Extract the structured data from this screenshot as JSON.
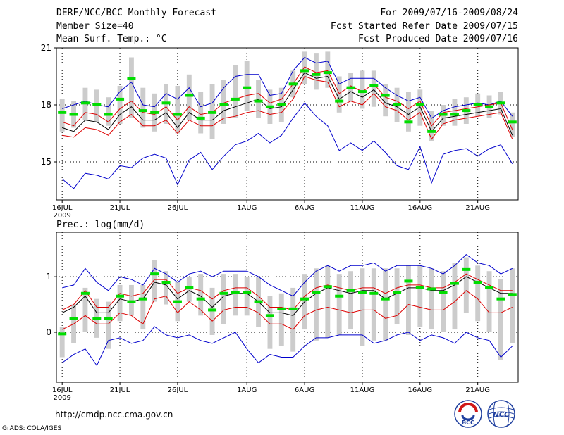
{
  "header": {
    "title": "DERF/NCC/BCC Monthly Forecast",
    "member_size": "Member Size=40",
    "variable": "Mean Surf. Temp.: °C",
    "period": "For 2009/07/16-2009/08/24",
    "started": "Fcst Started Refer Date 2009/07/15",
    "produced": "Fcst Produced Date 2009/07/16"
  },
  "footer": {
    "url": "http://cmdp.ncc.cma.gov.cn",
    "grads": "GrADS: COLA/IGES",
    "logo_left_text": "BCC",
    "logo_right_text": "NCC"
  },
  "colors": {
    "box": "#cccccc",
    "median": "#00dd00",
    "mean": "#000000",
    "spread": "#dd0000",
    "extreme": "#0000cc",
    "grid": "#000000"
  },
  "chart_data": [
    {
      "type": "line",
      "title": "Mean Surf. Temp.: °C",
      "x_tick_labels": [
        "16JUL",
        "21JUL",
        "26JUL",
        "1AUG",
        "6AUG",
        "11AUG",
        "16AUG",
        "21AUG"
      ],
      "x_tick_days": [
        0,
        5,
        10,
        16,
        21,
        26,
        31,
        36
      ],
      "year_label": "2009",
      "xlim": [
        0,
        40
      ],
      "ylim": [
        13.0,
        21.0
      ],
      "y_ticks": [
        15,
        18,
        21
      ],
      "series": [
        {
          "name": "max",
          "values": [
            14.1,
            13.6,
            14.4,
            14.3,
            14.1,
            14.8,
            14.7,
            15.2,
            15.4,
            15.2,
            13.8,
            15.1,
            15.5,
            14.6,
            15.3,
            15.9,
            16.1,
            16.5,
            16.0,
            16.4,
            17.3,
            18.1,
            17.4,
            16.9,
            15.6,
            16.0,
            15.6,
            16.1,
            15.5,
            14.8,
            14.6,
            15.8,
            13.9,
            15.4,
            15.6,
            15.7,
            15.3,
            15.7,
            15.9,
            14.9
          ]
        },
        {
          "name": "mean_minus",
          "values": [
            16.4,
            16.3,
            16.8,
            16.7,
            16.4,
            17.1,
            17.5,
            16.9,
            16.9,
            17.2,
            16.5,
            17.2,
            16.9,
            16.9,
            17.3,
            17.4,
            17.6,
            17.7,
            17.5,
            17.6,
            18.3,
            19.5,
            19.3,
            19.2,
            17.9,
            18.2,
            18.0,
            18.6,
            17.9,
            17.7,
            17.2,
            17.6,
            16.2,
            17.0,
            17.2,
            17.3,
            17.4,
            17.5,
            17.6,
            16.2
          ]
        },
        {
          "name": "mean",
          "values": [
            16.8,
            16.6,
            17.2,
            17.1,
            16.7,
            17.5,
            17.9,
            17.2,
            17.2,
            17.6,
            16.8,
            17.6,
            17.2,
            17.2,
            17.7,
            17.9,
            18.1,
            18.3,
            17.8,
            17.9,
            18.8,
            19.7,
            19.4,
            19.5,
            18.3,
            18.7,
            18.4,
            18.8,
            18.1,
            17.9,
            17.5,
            17.9,
            16.6,
            17.3,
            17.4,
            17.5,
            17.6,
            17.7,
            17.8,
            16.4
          ]
        },
        {
          "name": "mean_plus",
          "values": [
            17.1,
            16.9,
            17.6,
            17.5,
            17.1,
            17.8,
            18.2,
            17.6,
            17.5,
            17.9,
            17.2,
            17.9,
            17.5,
            17.6,
            18.1,
            18.3,
            18.5,
            18.6,
            18.1,
            18.3,
            19.1,
            20.0,
            19.7,
            19.8,
            18.6,
            19.0,
            18.7,
            19.1,
            18.4,
            18.2,
            17.8,
            18.2,
            16.9,
            17.6,
            17.7,
            17.8,
            17.9,
            18.0,
            18.1,
            16.7
          ]
        },
        {
          "name": "min",
          "values": [
            17.8,
            18.0,
            18.2,
            18.0,
            17.9,
            18.7,
            19.2,
            18.0,
            17.9,
            18.6,
            18.3,
            18.9,
            17.9,
            18.1,
            18.9,
            19.5,
            19.6,
            19.6,
            18.5,
            18.6,
            19.8,
            20.5,
            20.2,
            20.3,
            19.1,
            19.4,
            19.4,
            19.4,
            18.9,
            18.5,
            18.2,
            18.4,
            17.3,
            17.7,
            17.9,
            18.0,
            18.1,
            18.0,
            18.2,
            17.4
          ]
        },
        {
          "name": "median",
          "values": [
            17.6,
            17.5,
            18.1,
            18.0,
            17.5,
            18.3,
            19.4,
            17.7,
            17.6,
            18.1,
            17.5,
            18.5,
            17.3,
            17.6,
            18.0,
            18.3,
            18.9,
            18.2,
            17.9,
            18.0,
            19.1,
            19.8,
            19.6,
            19.7,
            18.2,
            18.9,
            18.7,
            19.0,
            18.5,
            18.0,
            17.1,
            18.0,
            16.6,
            17.5,
            17.5,
            17.7,
            18.0,
            17.9,
            18.1,
            17.1
          ]
        },
        {
          "name": "box_low",
          "values": [
            16.6,
            16.8,
            17.2,
            17.1,
            16.9,
            17.0,
            17.3,
            16.8,
            16.6,
            17.0,
            16.5,
            17.2,
            16.5,
            16.2,
            17.0,
            17.3,
            17.7,
            17.3,
            17.0,
            17.1,
            18.4,
            19.1,
            18.8,
            18.9,
            17.6,
            18.2,
            17.8,
            17.9,
            17.4,
            17.1,
            16.6,
            16.9,
            16.1,
            16.9,
            16.9,
            17.0,
            17.4,
            17.3,
            17.5,
            16.3
          ]
        },
        {
          "name": "box_high",
          "values": [
            18.3,
            18.2,
            18.9,
            18.8,
            18.4,
            19.0,
            20.5,
            18.9,
            18.6,
            19.1,
            19.0,
            19.6,
            18.7,
            19.1,
            19.3,
            20.1,
            20.3,
            19.3,
            18.8,
            18.9,
            19.8,
            20.8,
            20.7,
            20.8,
            19.5,
            19.7,
            19.8,
            19.8,
            19.1,
            18.9,
            18.7,
            18.8,
            17.7,
            18.0,
            18.3,
            18.4,
            18.6,
            18.5,
            18.7,
            17.6
          ]
        }
      ]
    },
    {
      "type": "line",
      "title": "Prec.: log(mm/d)",
      "x_tick_labels": [
        "16JUL",
        "21JUL",
        "26JUL",
        "1AUG",
        "6AUG",
        "11AUG",
        "16AUG",
        "21AUG"
      ],
      "x_tick_days": [
        0,
        5,
        10,
        16,
        21,
        26,
        31,
        36
      ],
      "year_label": "2009",
      "xlim": [
        0,
        40
      ],
      "ylim": [
        -0.9,
        1.8
      ],
      "y_ticks": [
        0,
        1
      ],
      "series": [
        {
          "name": "max",
          "values": [
            0.8,
            0.85,
            1.15,
            0.9,
            0.75,
            1.0,
            0.95,
            0.85,
            1.15,
            1.05,
            0.9,
            1.05,
            1.1,
            1.0,
            1.1,
            1.1,
            1.1,
            1.0,
            0.85,
            0.75,
            0.65,
            0.9,
            1.1,
            1.2,
            1.1,
            1.2,
            1.2,
            1.25,
            1.1,
            1.2,
            1.2,
            1.2,
            1.15,
            1.05,
            1.2,
            1.4,
            1.25,
            1.2,
            1.05,
            1.15
          ]
        },
        {
          "name": "mean_plus",
          "values": [
            0.4,
            0.5,
            0.75,
            0.45,
            0.45,
            0.7,
            0.65,
            0.7,
            0.95,
            0.95,
            0.7,
            0.8,
            0.75,
            0.6,
            0.75,
            0.8,
            0.8,
            0.65,
            0.45,
            0.45,
            0.4,
            0.65,
            0.8,
            0.85,
            0.8,
            0.75,
            0.8,
            0.8,
            0.7,
            0.8,
            0.85,
            0.85,
            0.8,
            0.8,
            0.9,
            1.05,
            0.95,
            0.85,
            0.75,
            0.75
          ]
        },
        {
          "name": "mean",
          "values": [
            0.35,
            0.45,
            0.65,
            0.35,
            0.35,
            0.6,
            0.55,
            0.6,
            0.9,
            0.85,
            0.6,
            0.75,
            0.65,
            0.45,
            0.65,
            0.7,
            0.7,
            0.55,
            0.35,
            0.35,
            0.3,
            0.55,
            0.7,
            0.8,
            0.75,
            0.7,
            0.75,
            0.75,
            0.6,
            0.7,
            0.8,
            0.8,
            0.75,
            0.75,
            0.85,
            1.0,
            0.9,
            0.8,
            0.7,
            0.7
          ]
        },
        {
          "name": "mean_minus",
          "values": [
            0.05,
            0.15,
            0.3,
            0.15,
            0.15,
            0.35,
            0.3,
            0.15,
            0.6,
            0.65,
            0.35,
            0.55,
            0.4,
            0.2,
            0.4,
            0.45,
            0.45,
            0.35,
            0.15,
            0.15,
            0.05,
            0.3,
            0.4,
            0.45,
            0.4,
            0.35,
            0.4,
            0.4,
            0.25,
            0.3,
            0.5,
            0.45,
            0.4,
            0.4,
            0.55,
            0.75,
            0.6,
            0.35,
            0.35,
            0.45
          ]
        },
        {
          "name": "min",
          "values": [
            -0.55,
            -0.4,
            -0.3,
            -0.6,
            -0.15,
            -0.1,
            -0.2,
            -0.15,
            0.1,
            -0.05,
            -0.1,
            -0.05,
            -0.15,
            -0.2,
            -0.1,
            0.0,
            -0.3,
            -0.55,
            -0.4,
            -0.45,
            -0.45,
            -0.25,
            -0.1,
            -0.1,
            -0.05,
            -0.05,
            -0.05,
            -0.2,
            -0.15,
            -0.05,
            0.0,
            -0.15,
            -0.05,
            -0.1,
            -0.2,
            0.0,
            -0.1,
            -0.15,
            -0.45,
            -0.25
          ]
        },
        {
          "name": "median",
          "values": [
            -0.03,
            0.25,
            0.7,
            0.25,
            0.25,
            0.65,
            0.55,
            0.6,
            1.05,
            0.9,
            0.55,
            0.8,
            0.6,
            0.4,
            0.7,
            0.72,
            0.72,
            0.55,
            0.3,
            0.42,
            0.42,
            0.6,
            0.72,
            0.82,
            0.65,
            0.75,
            0.72,
            0.7,
            0.6,
            0.72,
            0.92,
            0.8,
            0.78,
            0.72,
            0.88,
            1.13,
            0.9,
            0.8,
            0.6,
            0.68
          ]
        },
        {
          "name": "box_low",
          "values": [
            -0.45,
            -0.2,
            0.0,
            -0.1,
            -0.3,
            0.2,
            0.3,
            0.05,
            0.55,
            0.5,
            0.2,
            0.55,
            0.3,
            -0.05,
            0.15,
            0.3,
            0.3,
            0.1,
            -0.3,
            -0.25,
            -0.35,
            0.05,
            -0.15,
            -0.1,
            -0.05,
            0.05,
            -0.25,
            -0.15,
            -0.15,
            0.15,
            -0.05,
            0.1,
            0.05,
            0.0,
            0.05,
            0.35,
            0.2,
            0.0,
            -0.5,
            -0.2
          ]
        },
        {
          "name": "box_high",
          "values": [
            0.1,
            0.5,
            0.8,
            0.6,
            0.55,
            0.85,
            0.85,
            0.85,
            1.3,
            1.1,
            0.9,
            1.0,
            1.05,
            0.8,
            1.05,
            1.05,
            1.0,
            1.0,
            0.65,
            0.7,
            0.8,
            1.05,
            1.15,
            1.2,
            1.05,
            1.1,
            1.15,
            1.15,
            1.15,
            1.15,
            1.2,
            1.2,
            1.15,
            1.1,
            1.25,
            1.35,
            1.2,
            1.1,
            0.95,
            1.15
          ]
        }
      ]
    }
  ]
}
